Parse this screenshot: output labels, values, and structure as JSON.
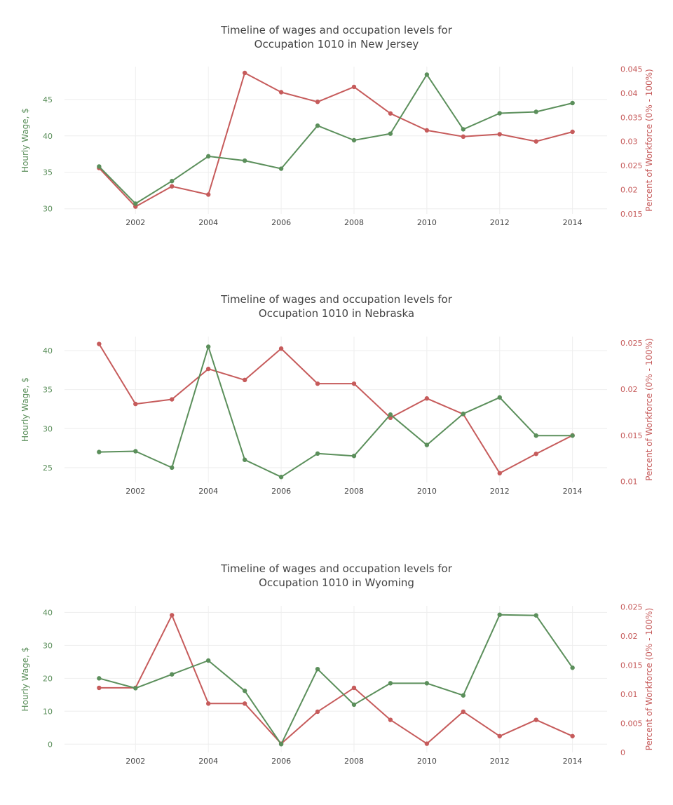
{
  "colors": {
    "wage": "#5b8f5b",
    "percent": "#c65b5b",
    "grid": "#eeeeee",
    "text": "#444444"
  },
  "chart_data": [
    {
      "type": "line",
      "title": [
        "Timeline of wages and occupation levels for",
        "Occupation 1010 in New Jersey"
      ],
      "xlabel": "",
      "ylabel": "Hourly Wage, $",
      "y2label": "Percent of Workforce (0% - 100%)",
      "x": [
        2001,
        2002,
        2003,
        2004,
        2005,
        2006,
        2007,
        2008,
        2009,
        2010,
        2011,
        2012,
        2013,
        2014
      ],
      "xticks": [
        "2002",
        "2004",
        "2006",
        "2008",
        "2010",
        "2012",
        "2014"
      ],
      "xtick_values": [
        2002,
        2004,
        2006,
        2008,
        2010,
        2012,
        2014
      ],
      "ylim": [
        29.3,
        49.5
      ],
      "yticks": [
        "30",
        "35",
        "40",
        "45"
      ],
      "ytick_values": [
        30,
        35,
        40,
        45
      ],
      "y2lim": [
        0.015,
        0.0455
      ],
      "y2ticks": [
        "0.015",
        "0.02",
        "0.025",
        "0.03",
        "0.035",
        "0.04",
        "0.045"
      ],
      "y2tick_values": [
        0.015,
        0.02,
        0.025,
        0.03,
        0.035,
        0.04,
        0.045
      ],
      "series": [
        {
          "axis": "y",
          "values": [
            35.8,
            30.7,
            33.8,
            37.2,
            36.6,
            35.5,
            41.4,
            39.4,
            40.3,
            48.4,
            40.9,
            43.1,
            43.3,
            44.5
          ]
        },
        {
          "axis": "y2",
          "values": [
            0.0245,
            0.0165,
            0.0207,
            0.019,
            0.0442,
            0.0402,
            0.0382,
            0.0413,
            0.0358,
            0.0323,
            0.031,
            0.0315,
            0.03,
            0.032
          ]
        }
      ],
      "grid": true,
      "legend": "none"
    },
    {
      "type": "line",
      "title": [
        "Timeline of wages and occupation levels for",
        "Occupation 1010 in Nebraska"
      ],
      "xlabel": "",
      "ylabel": "Hourly Wage, $",
      "y2label": "Percent of Workforce (0% - 100%)",
      "x": [
        2001,
        2002,
        2003,
        2004,
        2005,
        2006,
        2007,
        2008,
        2009,
        2010,
        2011,
        2012,
        2013,
        2014
      ],
      "xticks": [
        "2002",
        "2004",
        "2006",
        "2008",
        "2010",
        "2012",
        "2014"
      ],
      "xtick_values": [
        2002,
        2004,
        2006,
        2008,
        2010,
        2012,
        2014
      ],
      "ylim": [
        23.1,
        41.8
      ],
      "yticks": [
        "25",
        "30",
        "35",
        "40"
      ],
      "ytick_values": [
        25,
        30,
        35,
        40
      ],
      "y2lim": [
        0.0099,
        0.0257
      ],
      "y2ticks": [
        "0.01",
        "0.015",
        "0.02",
        "0.025"
      ],
      "y2tick_values": [
        0.01,
        0.015,
        0.02,
        0.025
      ],
      "series": [
        {
          "axis": "y",
          "values": [
            27.0,
            27.1,
            25.0,
            40.5,
            26.0,
            23.8,
            26.8,
            26.5,
            31.8,
            27.9,
            31.9,
            34.0,
            29.1,
            29.1
          ]
        },
        {
          "axis": "y2",
          "values": [
            0.0249,
            0.0184,
            0.0189,
            0.0222,
            0.021,
            0.0244,
            0.0206,
            0.0206,
            0.0169,
            0.019,
            0.0173,
            0.0109,
            0.013,
            0.015
          ]
        }
      ],
      "grid": true,
      "legend": "none"
    },
    {
      "type": "line",
      "title": [
        "Timeline of wages and occupation levels for",
        "Occupation 1010 in Wyoming"
      ],
      "xlabel": "",
      "ylabel": "Hourly Wage, $",
      "y2label": "Percent of Workforce (0% - 100%)",
      "x": [
        2001,
        2002,
        2003,
        2004,
        2005,
        2006,
        2007,
        2008,
        2009,
        2010,
        2011,
        2012,
        2013,
        2014
      ],
      "xticks": [
        "2002",
        "2004",
        "2006",
        "2008",
        "2010",
        "2012",
        "2014"
      ],
      "xtick_values": [
        2002,
        2004,
        2006,
        2008,
        2010,
        2012,
        2014
      ],
      "ylim": [
        -2.5,
        42.0
      ],
      "yticks": [
        "0",
        "10",
        "20",
        "30",
        "40"
      ],
      "ytick_values": [
        0,
        10,
        20,
        30,
        40
      ],
      "y2lim": [
        0,
        0.0252
      ],
      "y2ticks": [
        "0",
        "0.005",
        "0.01",
        "0.015",
        "0.02",
        "0.025"
      ],
      "y2tick_values": [
        0,
        0.005,
        0.01,
        0.015,
        0.02,
        0.025
      ],
      "series": [
        {
          "axis": "y",
          "values": [
            20.0,
            17.0,
            21.2,
            25.4,
            16.2,
            0.0,
            22.8,
            12.0,
            18.5,
            18.5,
            14.8,
            39.3,
            39.1,
            23.2
          ]
        },
        {
          "axis": "y2",
          "values": [
            0.0111,
            0.0111,
            0.0236,
            0.0084,
            0.0084,
            0.0015,
            0.007,
            0.0111,
            0.0056,
            0.0015,
            0.007,
            0.0028,
            0.0056,
            0.0028
          ]
        }
      ],
      "grid": true,
      "legend": "none"
    }
  ]
}
